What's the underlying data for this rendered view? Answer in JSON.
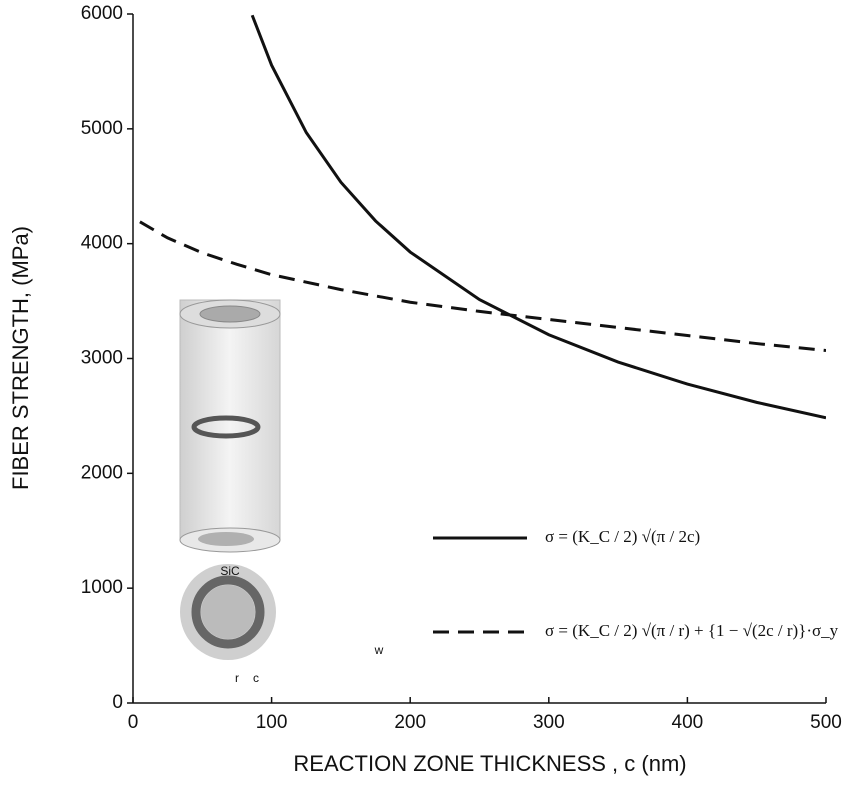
{
  "chart_data": {
    "type": "line",
    "xlabel": "REACTION ZONE THICKNESS , c (nm)",
    "ylabel": "FIBER STRENGTH, (MPa)",
    "xlim": [
      0,
      500
    ],
    "xticks": [
      0,
      100,
      200,
      300,
      400,
      500
    ],
    "ylim": [
      0,
      6000
    ],
    "yticks": [
      0,
      1000,
      2000,
      3000,
      4000,
      5000,
      6000
    ],
    "grid": false,
    "legend": "lower right",
    "series": [
      {
        "name": "σ = (K_C / 2) √(π / 2c)",
        "color": "#111111",
        "dash": "solid",
        "x": [
          86,
          100,
          125,
          150,
          175,
          200,
          250,
          300,
          350,
          400,
          450,
          500
        ],
        "values": [
          5989,
          5554,
          4968,
          4535,
          4198,
          3927,
          3513,
          3207,
          2969,
          2777,
          2618,
          2484
        ]
      },
      {
        "name": "σ = (K_C / 2) √(π / r) + {1 − √(2c / r)}·σ_y",
        "color": "#111111",
        "dash": "dashed",
        "x": [
          5,
          25,
          50,
          75,
          100,
          150,
          200,
          250,
          300,
          350,
          400,
          450,
          500
        ],
        "values": [
          4190,
          4050,
          3920,
          3820,
          3730,
          3600,
          3490,
          3410,
          3340,
          3270,
          3200,
          3130,
          3070
        ]
      }
    ],
    "annotations": [
      "SiC",
      "r",
      "c",
      "w"
    ]
  }
}
